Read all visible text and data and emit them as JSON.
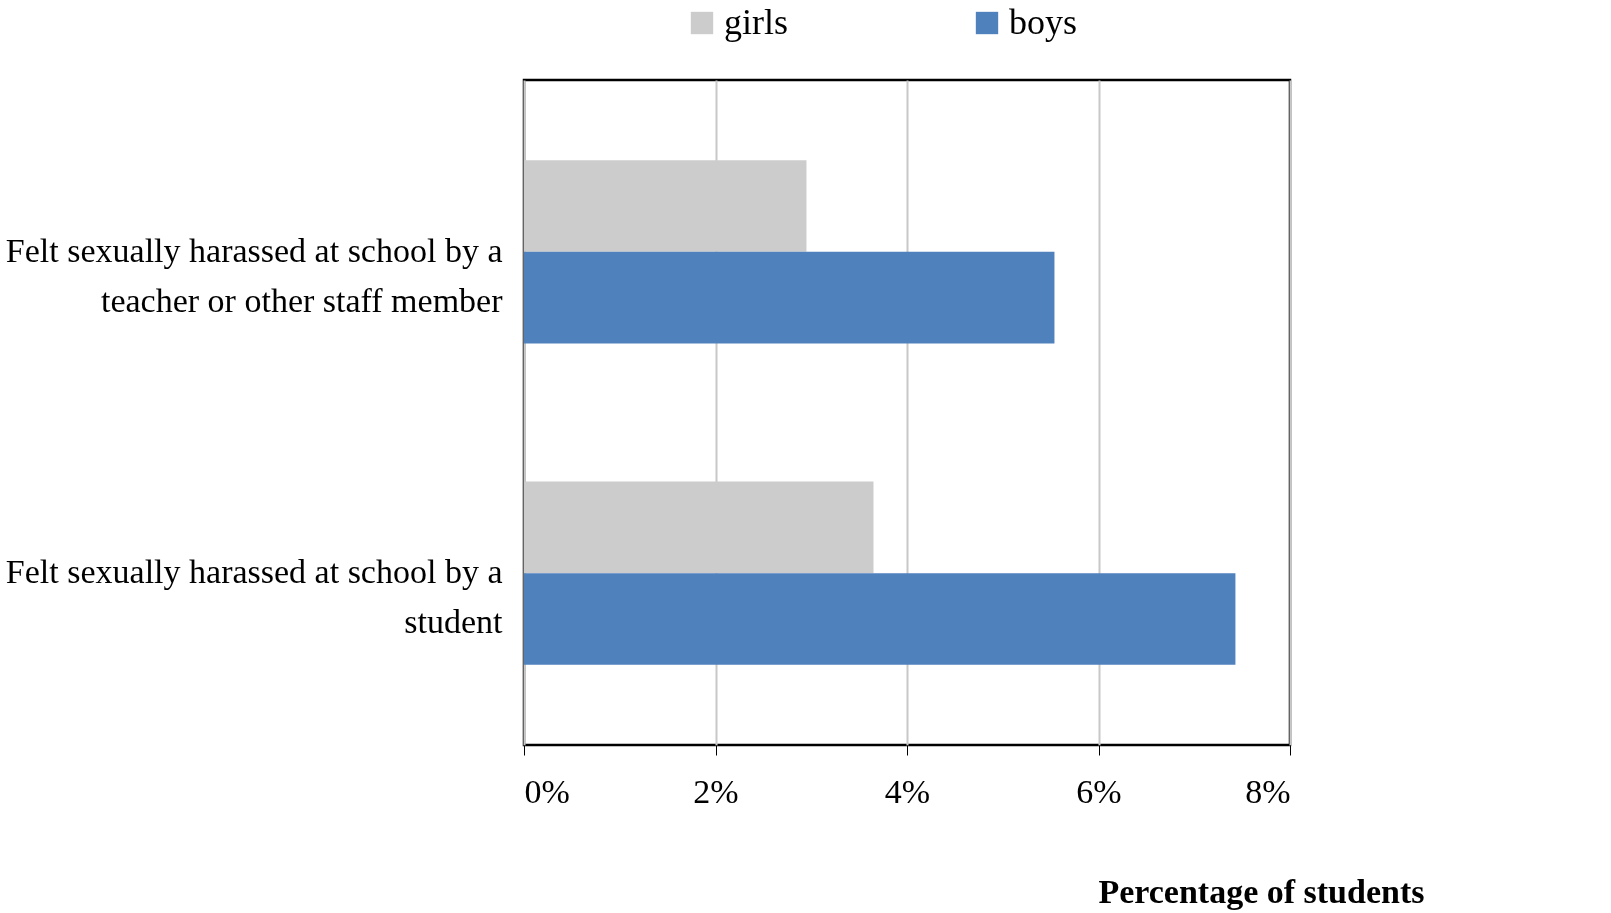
{
  "chart_data": {
    "type": "bar",
    "orientation": "horizontal",
    "xlabel": "Percentage of students",
    "categories": [
      "Felt sexually harassed at school by a teacher or other staff member",
      "Felt sexually harassed at school by a student"
    ],
    "series": [
      {
        "name": "girls",
        "color": "#cccccc",
        "values": [
          2.95,
          3.65
        ]
      },
      {
        "name": "boys",
        "color": "#4f81bd",
        "values": [
          5.54,
          7.43
        ]
      }
    ],
    "xlim": [
      0,
      8
    ],
    "xticks": [
      {
        "value": 0,
        "label": "0%"
      },
      {
        "value": 2,
        "label": "2%"
      },
      {
        "value": 4,
        "label": "4%"
      },
      {
        "value": 6,
        "label": "6%"
      },
      {
        "value": 8,
        "label": "8%"
      }
    ],
    "grid": "x",
    "legend": "top"
  }
}
